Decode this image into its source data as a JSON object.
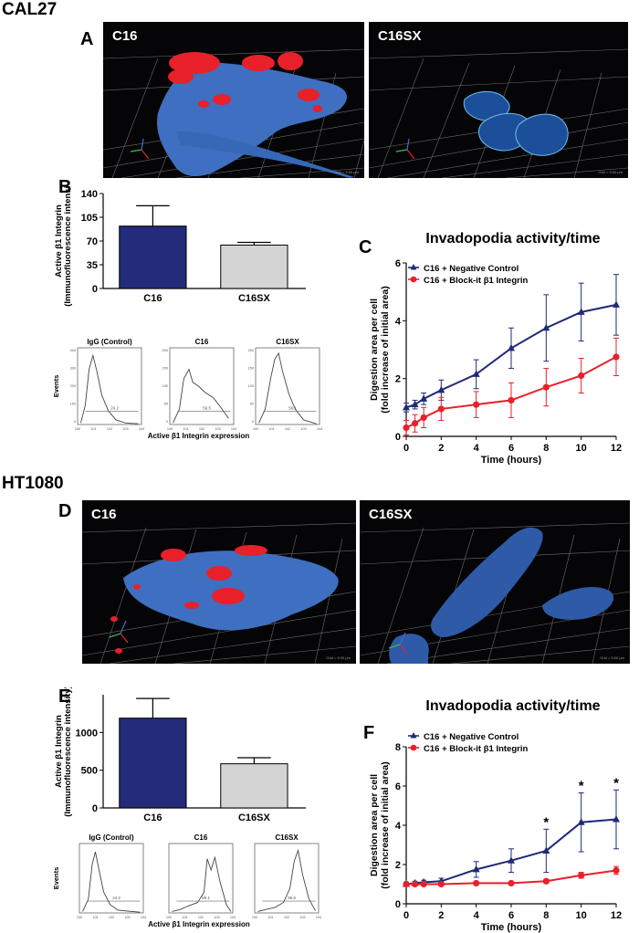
{
  "sections": {
    "top": "CAL27",
    "bottom": "HT1080"
  },
  "panel_labels": {
    "A": "A",
    "B": "B",
    "C": "C",
    "D": "D",
    "E": "E",
    "F": "F"
  },
  "micrographs": {
    "a_left_title": "C16",
    "a_right_title": "C16SX",
    "d_left_title": "C16",
    "d_right_title": "C16SX",
    "a_left_scale": "Grid = 5.00 µm",
    "a_right_scale": "Grid = 5.00 µm",
    "d_left_scale": "Grid = 5.00 µm",
    "d_right_scale": "Grid = 5.00 µm"
  },
  "flow": {
    "b": {
      "titles": [
        "IgG (Control)",
        "C16",
        "C16SX"
      ],
      "values": [
        "24.2",
        "56.5",
        "56.1"
      ],
      "ylabel": "Events",
      "xlabel": "Active β1 Integrin expression",
      "yticks": [
        [
          "400",
          "300",
          "200",
          "100",
          "0"
        ],
        [
          "200",
          "150",
          "100",
          "50",
          "0"
        ],
        [
          "200",
          "150",
          "100",
          "50",
          "0"
        ]
      ]
    },
    "e": {
      "titles": [
        "IgG (Control)",
        "C16",
        "C16SX"
      ],
      "values": [
        "24.2",
        "85.1",
        "86.6"
      ],
      "ylabel": "Events",
      "xlabel": "Active β1 Integrin expression"
    }
  },
  "colors": {
    "c16_bar": "#232b7a",
    "c16sx_bar": "#d4d4d4",
    "neg_control": "#1f2a78",
    "block_it": "#e8202a"
  },
  "chart_data": [
    {
      "id": "B",
      "type": "bar",
      "categories": [
        "C16",
        "C16SX"
      ],
      "values": [
        92,
        64
      ],
      "errors": [
        30,
        4
      ],
      "ylabel": "Active β1 Integrin",
      "ylabel2": "(Immunofluorescence intensity)",
      "ylim": [
        0,
        140
      ],
      "yticks": [
        0,
        35,
        70,
        105,
        140
      ]
    },
    {
      "id": "C",
      "type": "line",
      "title": "Invadopodia activity/time",
      "xlabel": "Time (hours)",
      "ylabel": "Digestion area per cell",
      "ylabel2": "(fold increase of initial area)",
      "xlim": [
        0,
        12
      ],
      "ylim": [
        0,
        6
      ],
      "xticks": [
        0,
        2,
        4,
        6,
        8,
        10,
        12
      ],
      "yticks": [
        0,
        2,
        4,
        6
      ],
      "x": [
        0,
        0.5,
        1,
        2,
        4,
        6,
        8,
        10,
        12
      ],
      "series": [
        {
          "name": "C16 + Negative Control",
          "values": [
            1.0,
            1.1,
            1.3,
            1.6,
            2.15,
            3.05,
            3.75,
            4.3,
            4.55
          ],
          "errors": [
            0.15,
            0.15,
            0.2,
            0.35,
            0.5,
            0.7,
            1.15,
            1.0,
            1.05
          ]
        },
        {
          "name": "C16 + Block-it β1 Integrin",
          "values": [
            0.3,
            0.45,
            0.65,
            0.95,
            1.1,
            1.25,
            1.7,
            2.1,
            2.75
          ],
          "errors": [
            0.25,
            0.3,
            0.35,
            0.4,
            0.45,
            0.6,
            0.65,
            0.6,
            0.65
          ]
        }
      ],
      "annotations": []
    },
    {
      "id": "E",
      "type": "bar",
      "categories": [
        "C16",
        "C16SX"
      ],
      "values": [
        1190,
        585
      ],
      "errors": [
        260,
        80
      ],
      "ylabel": "Active β1 Integrin",
      "ylabel2": "(Immunofluorescence intensity)",
      "ylim": [
        0,
        1500
      ],
      "yticks": [
        0,
        500,
        1000
      ]
    },
    {
      "id": "F",
      "type": "line",
      "title": "Invadopodia activity/time",
      "xlabel": "Time (hours)",
      "ylabel": "Digestion area per cell",
      "ylabel2": "(fold increase of initial area)",
      "xlim": [
        0,
        12
      ],
      "ylim": [
        0,
        8
      ],
      "xticks": [
        0,
        2,
        4,
        6,
        8,
        10,
        12
      ],
      "yticks": [
        0,
        2,
        4,
        6,
        8
      ],
      "x": [
        0,
        0.5,
        1,
        2,
        4,
        6,
        8,
        10,
        12
      ],
      "series": [
        {
          "name": "C16 + Negative Control",
          "values": [
            1.0,
            1.05,
            1.1,
            1.15,
            1.75,
            2.2,
            2.7,
            4.15,
            4.3
          ],
          "errors": [
            0.1,
            0.1,
            0.1,
            0.15,
            0.4,
            0.6,
            1.1,
            1.5,
            1.5
          ]
        },
        {
          "name": "C16 + Block-it β1 Integrin",
          "values": [
            1.0,
            1.0,
            1.0,
            1.0,
            1.05,
            1.05,
            1.15,
            1.45,
            1.7
          ],
          "errors": [
            0.05,
            0.05,
            0.05,
            0.05,
            0.05,
            0.05,
            0.1,
            0.15,
            0.2
          ]
        }
      ],
      "annotations": [
        {
          "x": 8,
          "text": "*"
        },
        {
          "x": 10,
          "text": "*"
        },
        {
          "x": 12,
          "text": "*"
        }
      ]
    }
  ]
}
